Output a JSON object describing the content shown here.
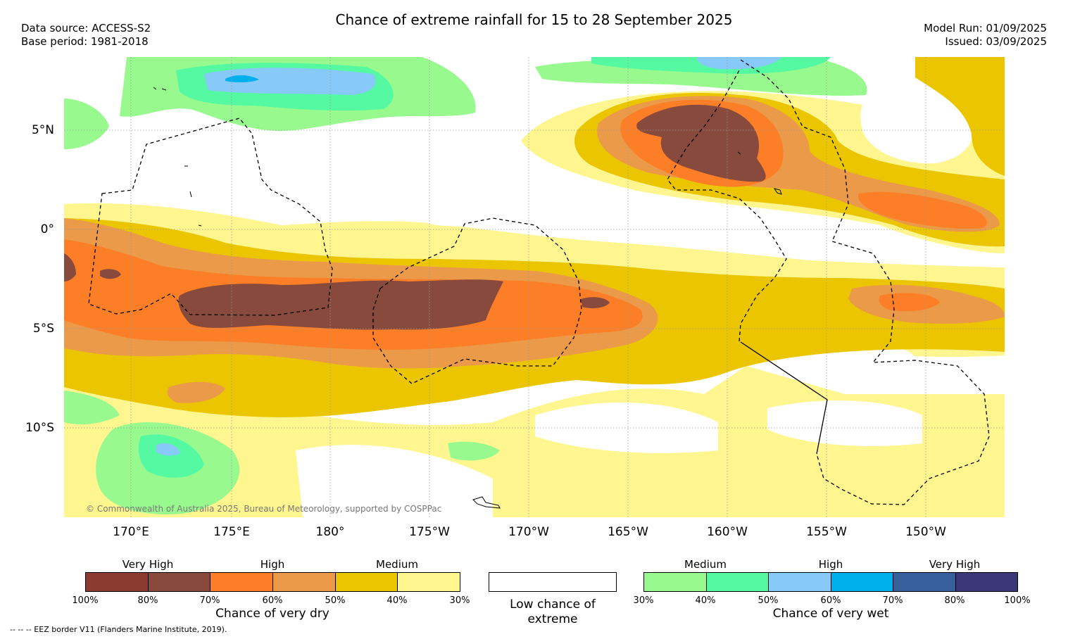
{
  "header": {
    "title": "Chance of extreme rainfall for 15 to 28 September 2025",
    "data_source": "Data source: ACCESS-S2",
    "base_period": "Base period: 1981-2018",
    "model_run": "Model Run: 01/09/2025",
    "issued": "Issued: 03/09/2025"
  },
  "map": {
    "lon_labels": [
      "170°E",
      "175°E",
      "180°",
      "175°W",
      "170°W",
      "165°W",
      "160°W",
      "155°W",
      "150°W"
    ],
    "lat_labels": [
      "5°N",
      "0°",
      "5°S",
      "10°S"
    ],
    "copyright": "© Commonwealth of Australia 2025, Bureau of Meteorology, supported by COSPPac"
  },
  "legend": {
    "dry": {
      "categories": [
        "Very High",
        "High",
        "Medium"
      ],
      "ticks": [
        "100%",
        "80%",
        "70%",
        "60%",
        "50%",
        "40%",
        "30%"
      ],
      "title": "Chance of very dry",
      "colors": [
        "#8b3a2f",
        "#884a3c",
        "#fc7e27",
        "#eb9a4a",
        "#ebc500",
        "#fff68f"
      ]
    },
    "low": {
      "label": "Low chance of extreme"
    },
    "wet": {
      "categories": [
        "Medium",
        "High",
        "Very High"
      ],
      "ticks": [
        "30%",
        "40%",
        "50%",
        "60%",
        "70%",
        "80%",
        "100%"
      ],
      "title": "Chance of very wet",
      "colors": [
        "#98fa8e",
        "#54f9a1",
        "#87cafa",
        "#00b0ec",
        "#365f9c",
        "#3c3878"
      ]
    }
  },
  "footnote": "-- -- -- EEZ border V11 (Flanders Marine Institute, 2019)."
}
